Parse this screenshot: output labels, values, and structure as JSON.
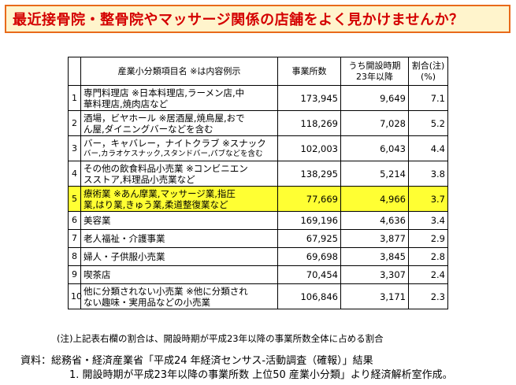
{
  "title": "最近接骨院・整骨院やマッサージ関係の店舗をよく見かけませんか？",
  "table": {
    "headers": {
      "item": "産業小分類項目名 ※は内容例示",
      "count": "事業所数",
      "since_line1": "うち開設時期",
      "since_line2": "23年以降",
      "ratio_line1": "割合(注)",
      "ratio_line2": "(%)"
    },
    "rows": [
      {
        "no": "1",
        "item_line1": "専門料理店 ※日本料理店,ラーメン店,中",
        "item_line2": "華料理店,焼肉店など",
        "count": "173,945",
        "since": "9,649",
        "ratio": "7.1"
      },
      {
        "no": "2",
        "item_line1": "酒場，ビヤホール ※居酒屋,焼鳥屋,おで",
        "item_line2": "ん屋,ダイニングバーなどを含む",
        "count": "118,269",
        "since": "7,028",
        "ratio": "5.2"
      },
      {
        "no": "3",
        "item_line1": "バー，キャバレー，ナイトクラブ ※スナック",
        "item_line2": "バー,カラオケスナック,スタンドバー,パブなどを含む",
        "count": "102,003",
        "since": "6,043",
        "ratio": "4.4"
      },
      {
        "no": "4",
        "item_line1": "その他の飲食料品小売業 ※コンビニエン",
        "item_line2": "スストア,料理品小売業など",
        "count": "138,295",
        "since": "5,214",
        "ratio": "3.8"
      },
      {
        "no": "5",
        "item_line1": "療術業 ※あん摩業,マッサージ業,指圧",
        "item_line2": "業,はり業,きゅう業,柔道整復業など",
        "count": "77,669",
        "since": "4,966",
        "ratio": "3.7"
      },
      {
        "no": "6",
        "item_line1": "美容業",
        "item_line2": "",
        "count": "169,196",
        "since": "4,636",
        "ratio": "3.4"
      },
      {
        "no": "7",
        "item_line1": "老人福祉・介護事業",
        "item_line2": "",
        "count": "67,925",
        "since": "3,877",
        "ratio": "2.9"
      },
      {
        "no": "8",
        "item_line1": "婦人・子供服小売業",
        "item_line2": "",
        "count": "69,698",
        "since": "3,845",
        "ratio": "2.8"
      },
      {
        "no": "9",
        "item_line1": "喫茶店",
        "item_line2": "",
        "count": "70,454",
        "since": "3,307",
        "ratio": "2.4"
      },
      {
        "no": "10",
        "item_line1": "他に分類されない小売業 ※他に分類され",
        "item_line2": "ない趣味・実用品などの小売業",
        "count": "106,846",
        "since": "3,171",
        "ratio": "2.3"
      }
    ],
    "highlight_color": "#ffff33"
  },
  "note": "(注)上記表右欄の割合は、開設時期が平成23年以降の事業所数全体に占める割合",
  "source_line1": "資料：総務省・経済産業省「平成24 年経済センサス-活動調査（確報）」結果",
  "source_line2": "1. 開設時期が平成23年以降の事業所数 上位50 産業小分類」より経済解析室作成。",
  "colors": {
    "title_text": "#d40000",
    "title_bg": "#fff4cc",
    "title_border": "#e86a1a"
  }
}
